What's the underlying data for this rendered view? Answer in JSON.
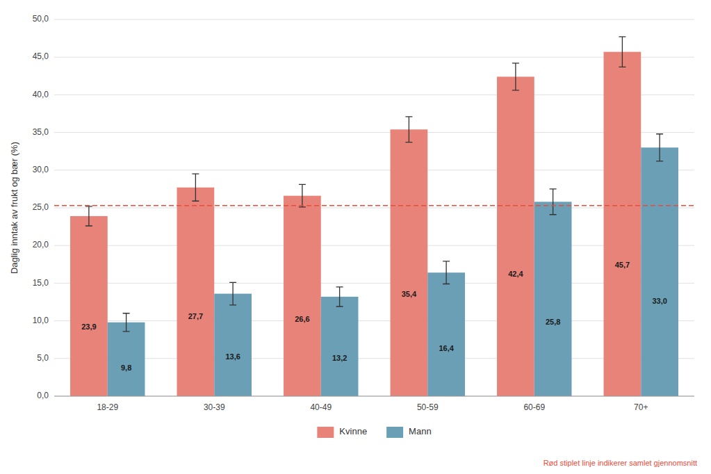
{
  "chart_data": {
    "type": "bar",
    "ylabel": "Daglig inntak av frukt og bær (%)",
    "categories": [
      "18-29",
      "30-39",
      "40-49",
      "50-59",
      "60-69",
      "70+"
    ],
    "series": [
      {
        "name": "Kvinne",
        "color": "#E8837A",
        "values": [
          23.9,
          27.7,
          26.6,
          35.4,
          42.4,
          45.7
        ],
        "errors": [
          1.3,
          1.8,
          1.5,
          1.7,
          1.8,
          2.0
        ],
        "value_labels": [
          "23,9",
          "27,7",
          "26,6",
          "35,4",
          "42,4",
          "45,7"
        ]
      },
      {
        "name": "Mann",
        "color": "#6A9FB5",
        "values": [
          9.8,
          13.6,
          13.2,
          16.4,
          25.8,
          33.0
        ],
        "errors": [
          1.2,
          1.5,
          1.3,
          1.5,
          1.7,
          1.8
        ],
        "value_labels": [
          "9,8",
          "13,6",
          "13,2",
          "16,4",
          "25,8",
          "33,0"
        ]
      }
    ],
    "reference_line": {
      "y": 25.3,
      "color": "#e74c3c",
      "line_style": "dashed"
    },
    "annotation": "Rød stiplet linje indikerer samlet gjennomsnitt",
    "ylim": [
      0,
      50
    ],
    "yticks": [
      {
        "value": 0,
        "label": "0,0"
      },
      {
        "value": 5,
        "label": "5,0"
      },
      {
        "value": 10,
        "label": "10,0"
      },
      {
        "value": 15,
        "label": "15,0"
      },
      {
        "value": 20,
        "label": "20,0"
      },
      {
        "value": 25,
        "label": "25,0"
      },
      {
        "value": 30,
        "label": "30,0"
      },
      {
        "value": 35,
        "label": "35,0"
      },
      {
        "value": 40,
        "label": "40,0"
      },
      {
        "value": 45,
        "label": "45,0"
      },
      {
        "value": 50,
        "label": "50,0"
      }
    ],
    "grid": true,
    "data_labels": true,
    "legend": "bottom"
  }
}
